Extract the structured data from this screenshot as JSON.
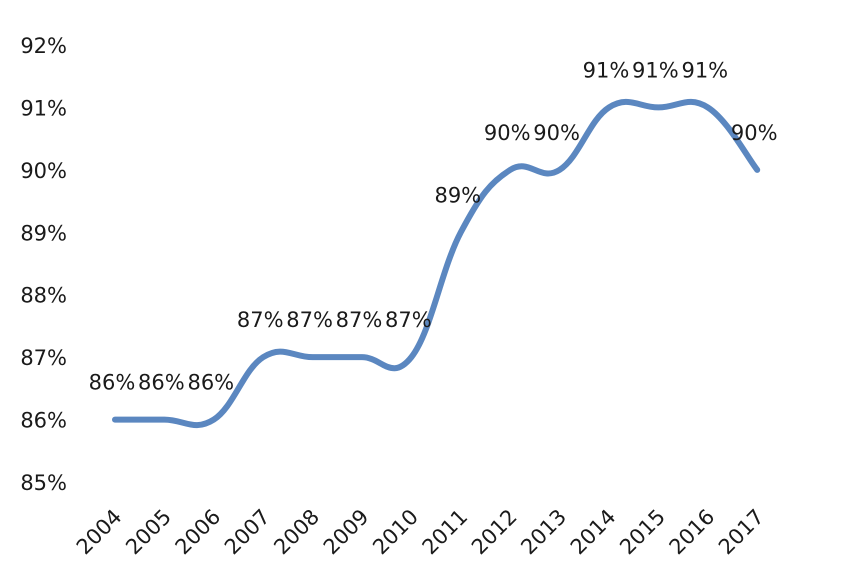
{
  "chart_data": {
    "type": "line",
    "title": "",
    "xlabel": "",
    "ylabel": "",
    "x": [
      "2004",
      "2005",
      "2006",
      "2007",
      "2008",
      "2009",
      "2010",
      "2011",
      "2012",
      "2013",
      "2014",
      "2015",
      "2016",
      "2017"
    ],
    "series": [
      {
        "values": [
          0.86,
          0.86,
          0.86,
          0.87,
          0.87,
          0.87,
          0.87,
          0.89,
          0.9,
          0.9,
          0.91,
          0.91,
          0.91,
          0.9
        ],
        "data_labels": [
          "86%",
          "86%",
          "86%",
          "87%",
          "87%",
          "87%",
          "87%",
          "89%",
          "90%",
          "90%",
          "91%",
          "91%",
          "91%",
          "90%"
        ],
        "color": "#5b87c0"
      }
    ],
    "ylim": [
      0.85,
      0.92
    ],
    "yticks": [
      "85%",
      "86%",
      "87%",
      "88%",
      "89%",
      "90%",
      "91%",
      "92%"
    ],
    "grid": false,
    "legend": false,
    "smooth": true
  }
}
